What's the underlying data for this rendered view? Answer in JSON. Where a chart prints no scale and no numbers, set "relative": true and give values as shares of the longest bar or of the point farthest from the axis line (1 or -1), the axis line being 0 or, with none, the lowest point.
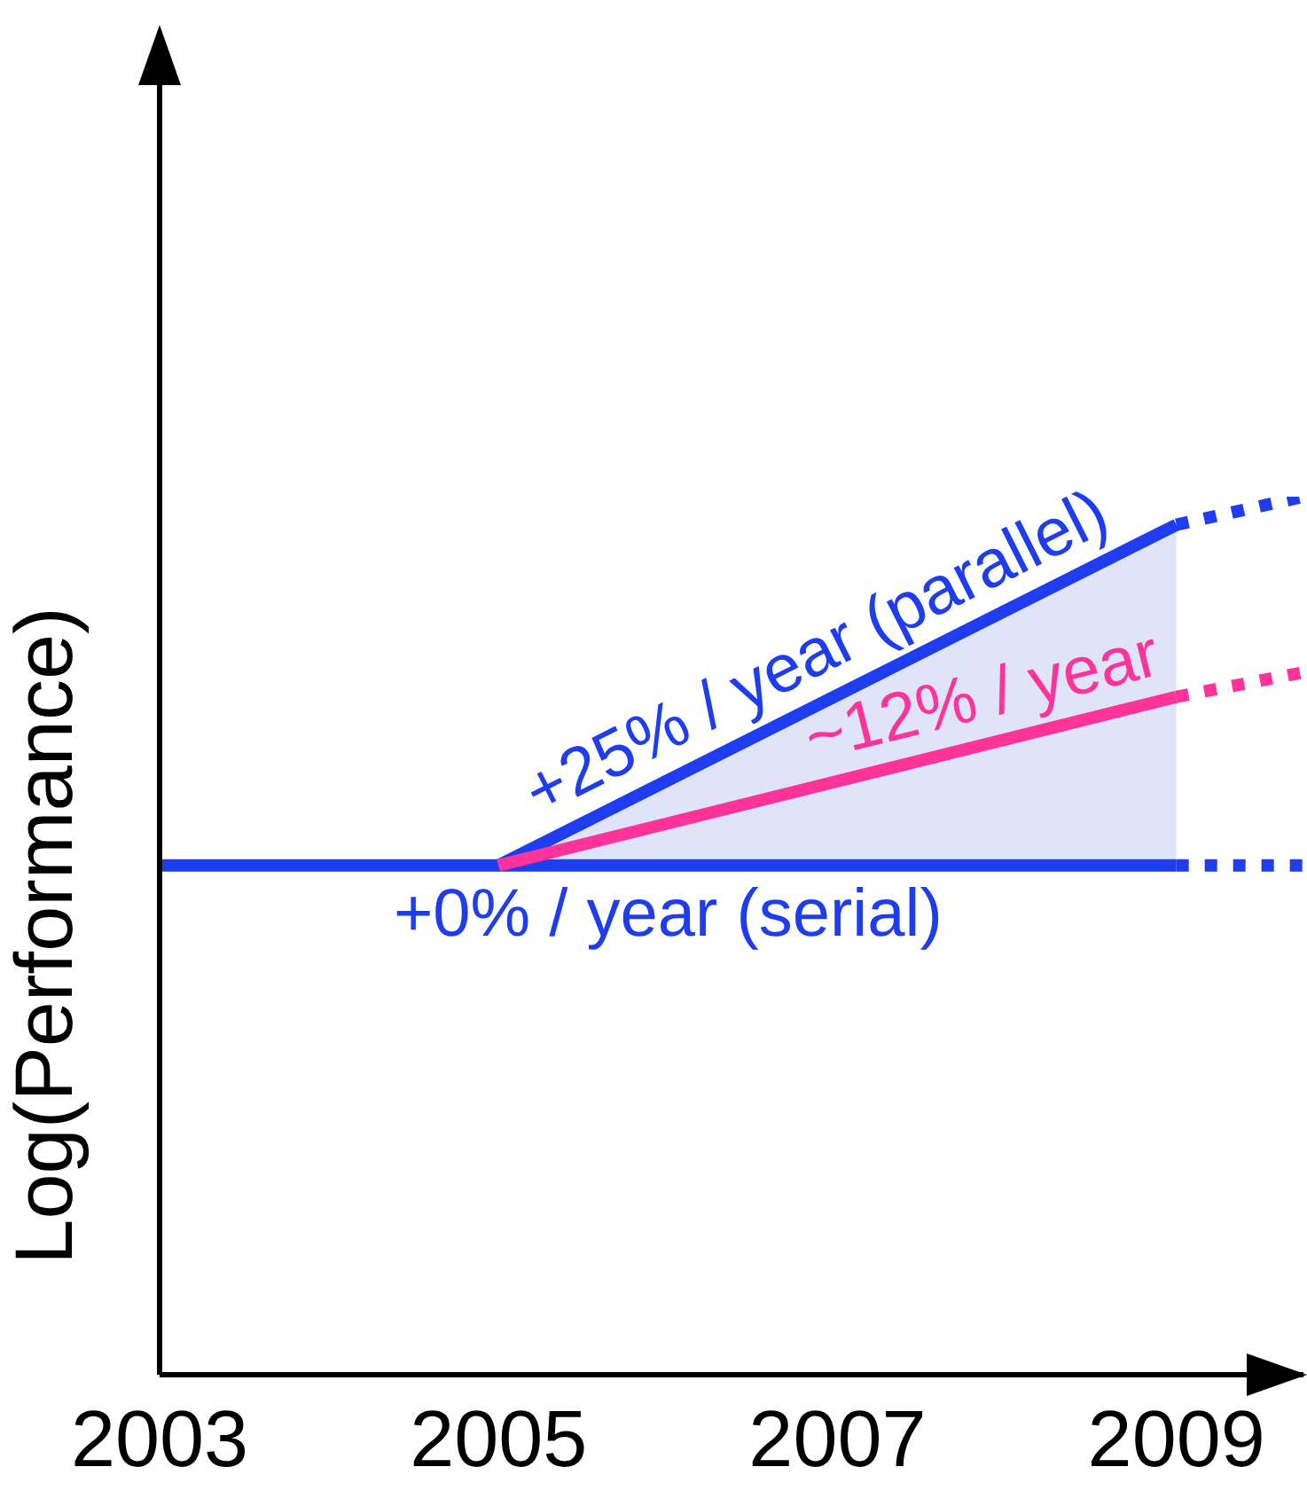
{
  "chart_data": {
    "type": "line",
    "relative": true,
    "ylabel": "Log(Performance)",
    "xlim": [
      2003,
      2009.75
    ],
    "xticks": [
      2003,
      2005,
      2007,
      2009
    ],
    "tick_labels": "x",
    "grid": false,
    "legend": false,
    "marker": "none",
    "line_style": "solid",
    "series": [
      {
        "name": "+0% / year (serial)",
        "color": "#1e3cf0",
        "x": [
          2003,
          2009
        ],
        "values": [
          0.58,
          0.58
        ]
      },
      {
        "name": "+25% / year (parallel)",
        "color": "#1e3cf0",
        "x": [
          2005,
          2009
        ],
        "values": [
          0.58,
          0.968
        ],
        "lower": [
          0.58,
          0.58
        ],
        "upper": [
          0.58,
          0.968
        ]
      },
      {
        "name": "~12% / year",
        "color": "#ff3399",
        "x": [
          2005,
          2009
        ],
        "values": [
          0.58,
          0.772
        ]
      },
      {
        "color": "#1e3cf0",
        "x": [
          2009,
          2009.75
        ],
        "values": [
          0.58,
          0.58
        ],
        "line_style": "dotted"
      },
      {
        "color": "#1e3cf0",
        "x": [
          2009,
          2009.75
        ],
        "values": [
          0.968,
          1
        ],
        "line_style": "dotted"
      },
      {
        "color": "#ff3399",
        "x": [
          2009,
          2009.75
        ],
        "values": [
          0.772,
          0.8
        ],
        "line_style": "dotted"
      }
    ]
  }
}
